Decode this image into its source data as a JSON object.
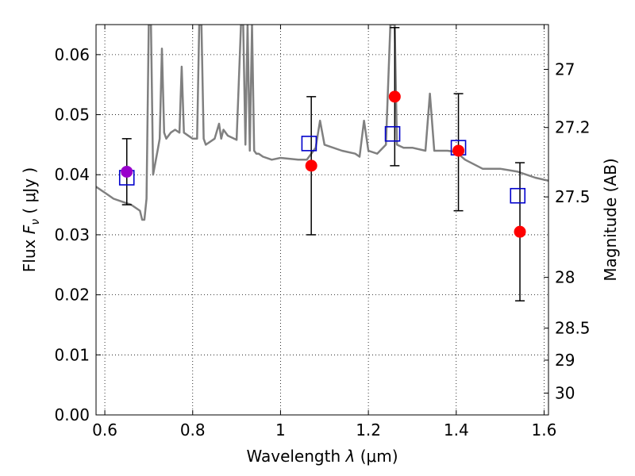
{
  "chart_data": {
    "type": "line",
    "xlabel": "Wavelength",
    "xlabel_symbol": "λ",
    "xlabel_unit": "(μm)",
    "ylabel": "Flux",
    "ylabel_symbol": "F",
    "ylabel_subscript": "ν",
    "ylabel_unit": "( μJy )",
    "y2label": "Magnitude (AB)",
    "xlim": [
      0.58,
      1.61
    ],
    "ylim": [
      0.0,
      0.065
    ],
    "xticks": [
      0.6,
      0.8,
      1.0,
      1.2,
      1.4,
      1.6
    ],
    "xtick_labels": [
      "0.6",
      "0.8",
      "1",
      "1.2",
      "1.4",
      "1.6"
    ],
    "yticks": [
      0.0,
      0.01,
      0.02,
      0.03,
      0.04,
      0.05,
      0.06
    ],
    "ytick_labels": [
      "0.00",
      "0.01",
      "0.02",
      "0.03",
      "0.04",
      "0.05",
      "0.06"
    ],
    "y2ticks": [
      27,
      27.2,
      27.5,
      28,
      28.5,
      29,
      30
    ],
    "y2tick_labels": [
      "27",
      "27.2",
      "27.5",
      "28",
      "28.5",
      "29",
      "30"
    ],
    "grid": true,
    "colors": {
      "model": "#808080",
      "observed": "#ff0000",
      "model_points": "#0000cc",
      "blended": "#9900cc",
      "errorbar": "#000000"
    },
    "series": [
      {
        "kind": "line",
        "x": [
          0.58,
          0.6,
          0.62,
          0.64,
          0.66,
          0.68,
          0.685,
          0.69,
          0.695,
          0.7,
          0.705,
          0.71,
          0.715,
          0.72,
          0.725,
          0.73,
          0.735,
          0.74,
          0.75,
          0.76,
          0.77,
          0.775,
          0.78,
          0.8,
          0.81,
          0.815,
          0.82,
          0.825,
          0.83,
          0.85,
          0.86,
          0.865,
          0.87,
          0.88,
          0.9,
          0.91,
          0.915,
          0.92,
          0.925,
          0.93,
          0.935,
          0.94,
          0.945,
          0.95,
          0.96,
          0.98,
          1.0,
          1.04,
          1.06,
          1.07,
          1.08,
          1.09,
          1.1,
          1.14,
          1.17,
          1.18,
          1.19,
          1.2,
          1.22,
          1.24,
          1.25,
          1.255,
          1.26,
          1.265,
          1.28,
          1.3,
          1.33,
          1.34,
          1.35,
          1.36,
          1.38,
          1.4,
          1.42,
          1.46,
          1.5,
          1.54,
          1.58,
          1.61
        ],
        "y": [
          0.038,
          0.037,
          0.036,
          0.0355,
          0.035,
          0.034,
          0.0325,
          0.0325,
          0.036,
          0.065,
          0.065,
          0.04,
          0.042,
          0.044,
          0.046,
          0.061,
          0.047,
          0.046,
          0.047,
          0.0475,
          0.047,
          0.058,
          0.047,
          0.046,
          0.046,
          0.065,
          0.065,
          0.046,
          0.045,
          0.046,
          0.0485,
          0.046,
          0.0475,
          0.0465,
          0.0458,
          0.065,
          0.065,
          0.045,
          0.065,
          0.044,
          0.065,
          0.044,
          0.0435,
          0.0435,
          0.043,
          0.0425,
          0.0428,
          0.0425,
          0.0425,
          0.0435,
          0.0445,
          0.049,
          0.045,
          0.044,
          0.0435,
          0.043,
          0.049,
          0.044,
          0.0435,
          0.045,
          0.065,
          0.065,
          0.065,
          0.045,
          0.0445,
          0.0445,
          0.044,
          0.0535,
          0.044,
          0.044,
          0.044,
          0.0438,
          0.0425,
          0.041,
          0.041,
          0.0405,
          0.0395,
          0.039
        ]
      },
      {
        "kind": "scatter",
        "marker": "circle",
        "x": [
          0.65,
          1.07,
          1.26,
          1.405,
          1.545
        ],
        "y": [
          0.0405,
          0.0415,
          0.053,
          0.044,
          0.0305
        ],
        "err_low": [
          0.035,
          0.03,
          0.0415,
          0.034,
          0.019
        ],
        "err_high": [
          0.046,
          0.053,
          0.0645,
          0.0535,
          0.042
        ]
      },
      {
        "kind": "scatter",
        "marker": "square",
        "x": [
          0.65,
          1.065,
          1.255,
          1.405,
          1.54
        ],
        "y": [
          0.0395,
          0.0452,
          0.0468,
          0.0445,
          0.0365
        ]
      }
    ]
  }
}
